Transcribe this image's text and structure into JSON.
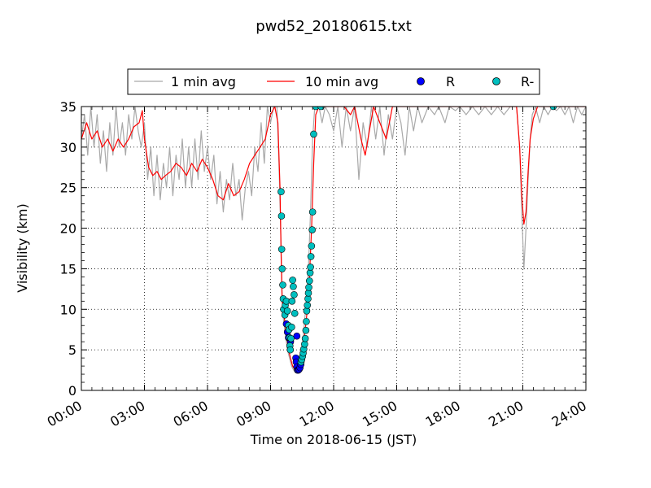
{
  "chart_data": {
    "type": "line",
    "title": "pwd52_20180615.txt",
    "xlabel": "Time on 2018-06-15 (JST)",
    "ylabel": "Visibility (km)",
    "x_unit": "hours",
    "xlim": [
      0,
      24
    ],
    "ylim": [
      0,
      35
    ],
    "x_ticks": [
      0,
      3,
      6,
      9,
      12,
      15,
      18,
      21,
      24
    ],
    "x_tick_labels": [
      "00:00",
      "03:00",
      "06:00",
      "09:00",
      "12:00",
      "15:00",
      "18:00",
      "21:00",
      "24:00"
    ],
    "y_ticks": [
      0,
      5,
      10,
      15,
      20,
      25,
      30,
      35
    ],
    "y_tick_labels": [
      "0",
      "5",
      "10",
      "15",
      "20",
      "25",
      "30",
      "35"
    ],
    "grid": true,
    "legend_position": "top-center",
    "colors": {
      "one_min": "#a9a9a9",
      "ten_min": "#ff0000",
      "R": "#0000ff",
      "R_minus": "#00bfbf"
    },
    "legend": [
      {
        "label": "1 min avg",
        "kind": "line",
        "color": "#a9a9a9"
      },
      {
        "label": "10 min avg",
        "kind": "line",
        "color": "#ff0000"
      },
      {
        "label": "R",
        "kind": "marker",
        "color": "#0000ff"
      },
      {
        "label": "R-",
        "kind": "marker",
        "color": "#00bfbf"
      }
    ],
    "series": [
      {
        "name": "1 min avg",
        "style": "line",
        "color": "#a9a9a9",
        "points": [
          [
            0,
            31
          ],
          [
            0.15,
            34
          ],
          [
            0.3,
            29
          ],
          [
            0.45,
            35
          ],
          [
            0.6,
            30
          ],
          [
            0.75,
            34
          ],
          [
            0.9,
            28
          ],
          [
            1.05,
            32
          ],
          [
            1.2,
            27
          ],
          [
            1.35,
            33
          ],
          [
            1.5,
            29
          ],
          [
            1.65,
            35
          ],
          [
            1.8,
            30
          ],
          [
            1.95,
            33
          ],
          [
            2.1,
            29
          ],
          [
            2.25,
            34
          ],
          [
            2.4,
            31
          ],
          [
            2.55,
            35
          ],
          [
            2.7,
            32
          ],
          [
            2.85,
            30
          ],
          [
            3,
            33
          ],
          [
            3.15,
            26
          ],
          [
            3.3,
            30
          ],
          [
            3.45,
            24
          ],
          [
            3.6,
            29
          ],
          [
            3.75,
            23.5
          ],
          [
            3.9,
            28
          ],
          [
            4.05,
            25
          ],
          [
            4.2,
            30
          ],
          [
            4.35,
            24
          ],
          [
            4.5,
            29
          ],
          [
            4.65,
            26
          ],
          [
            4.8,
            31
          ],
          [
            4.95,
            25
          ],
          [
            5.1,
            30
          ],
          [
            5.25,
            25
          ],
          [
            5.4,
            31
          ],
          [
            5.55,
            26
          ],
          [
            5.7,
            32
          ],
          [
            5.85,
            27
          ],
          [
            6,
            30
          ],
          [
            6.15,
            26
          ],
          [
            6.3,
            29
          ],
          [
            6.45,
            23
          ],
          [
            6.6,
            27
          ],
          [
            6.75,
            22
          ],
          [
            6.9,
            26
          ],
          [
            7.05,
            23.5
          ],
          [
            7.2,
            28
          ],
          [
            7.35,
            24
          ],
          [
            7.5,
            26
          ],
          [
            7.65,
            21
          ],
          [
            7.8,
            25
          ],
          [
            7.95,
            27
          ],
          [
            8.1,
            24
          ],
          [
            8.25,
            30
          ],
          [
            8.4,
            27
          ],
          [
            8.55,
            33
          ],
          [
            8.7,
            28
          ],
          [
            8.85,
            35
          ],
          [
            9,
            33
          ],
          [
            9.15,
            35
          ],
          [
            9.3,
            35
          ],
          [
            9.4,
            28
          ],
          [
            9.5,
            18
          ],
          [
            9.55,
            12
          ],
          [
            9.6,
            9
          ],
          [
            9.7,
            7
          ],
          [
            9.8,
            5
          ],
          [
            9.9,
            4
          ],
          [
            10,
            3
          ],
          [
            10.1,
            2.5
          ],
          [
            10.2,
            2.7
          ],
          [
            10.3,
            3
          ],
          [
            10.4,
            3.5
          ],
          [
            10.5,
            5
          ],
          [
            10.6,
            8
          ],
          [
            10.7,
            11
          ],
          [
            10.8,
            15
          ],
          [
            10.9,
            22
          ],
          [
            11,
            31
          ],
          [
            11.1,
            35
          ],
          [
            11.3,
            35
          ],
          [
            11.45,
            33
          ],
          [
            11.6,
            35
          ],
          [
            11.8,
            34
          ],
          [
            12,
            32
          ],
          [
            12.2,
            35
          ],
          [
            12.4,
            30
          ],
          [
            12.6,
            35
          ],
          [
            12.8,
            32
          ],
          [
            13,
            35
          ],
          [
            13.2,
            26
          ],
          [
            13.4,
            33
          ],
          [
            13.6,
            30
          ],
          [
            13.8,
            35
          ],
          [
            14,
            31
          ],
          [
            14.2,
            35
          ],
          [
            14.4,
            29
          ],
          [
            14.6,
            34
          ],
          [
            14.8,
            31
          ],
          [
            15,
            35
          ],
          [
            15.2,
            33
          ],
          [
            15.4,
            29
          ],
          [
            15.6,
            35
          ],
          [
            15.8,
            32
          ],
          [
            16,
            35
          ],
          [
            16.2,
            33
          ],
          [
            16.5,
            35
          ],
          [
            16.8,
            34
          ],
          [
            17,
            35
          ],
          [
            17.3,
            33
          ],
          [
            17.5,
            35
          ],
          [
            17.8,
            34.5
          ],
          [
            18,
            35
          ],
          [
            18.3,
            34
          ],
          [
            18.6,
            35
          ],
          [
            18.9,
            34
          ],
          [
            19.2,
            35
          ],
          [
            19.5,
            34
          ],
          [
            19.8,
            35
          ],
          [
            20.1,
            34
          ],
          [
            20.4,
            35
          ],
          [
            20.7,
            35
          ],
          [
            20.85,
            30
          ],
          [
            20.95,
            22
          ],
          [
            21.05,
            15
          ],
          [
            21.15,
            20
          ],
          [
            21.25,
            26
          ],
          [
            21.35,
            31
          ],
          [
            21.45,
            34
          ],
          [
            21.6,
            35
          ],
          [
            21.8,
            33
          ],
          [
            22,
            35
          ],
          [
            22.2,
            34
          ],
          [
            22.4,
            35
          ],
          [
            22.6,
            34.5
          ],
          [
            22.8,
            35
          ],
          [
            23,
            34
          ],
          [
            23.2,
            35
          ],
          [
            23.4,
            33
          ],
          [
            23.6,
            35
          ],
          [
            23.8,
            34
          ],
          [
            24,
            35
          ]
        ]
      },
      {
        "name": "10 min avg",
        "style": "line",
        "color": "#ff0000",
        "points": [
          [
            0,
            31
          ],
          [
            0.25,
            33
          ],
          [
            0.5,
            31
          ],
          [
            0.75,
            32
          ],
          [
            1,
            30
          ],
          [
            1.25,
            31
          ],
          [
            1.5,
            29.5
          ],
          [
            1.75,
            31
          ],
          [
            2,
            30
          ],
          [
            2.25,
            31
          ],
          [
            2.5,
            32.5
          ],
          [
            2.75,
            33
          ],
          [
            2.9,
            34.5
          ],
          [
            3,
            31
          ],
          [
            3.2,
            27.5
          ],
          [
            3.4,
            26.5
          ],
          [
            3.6,
            27
          ],
          [
            3.8,
            26
          ],
          [
            4,
            26.5
          ],
          [
            4.25,
            27
          ],
          [
            4.5,
            28
          ],
          [
            4.75,
            27.5
          ],
          [
            5,
            26.5
          ],
          [
            5.25,
            28
          ],
          [
            5.5,
            27
          ],
          [
            5.75,
            28.5
          ],
          [
            6,
            27.5
          ],
          [
            6.25,
            26
          ],
          [
            6.5,
            24
          ],
          [
            6.75,
            23.5
          ],
          [
            7,
            25.5
          ],
          [
            7.25,
            24
          ],
          [
            7.5,
            24.5
          ],
          [
            7.75,
            26
          ],
          [
            8,
            28
          ],
          [
            8.25,
            29
          ],
          [
            8.5,
            30
          ],
          [
            8.75,
            31
          ],
          [
            9,
            34
          ],
          [
            9.2,
            35
          ],
          [
            9.35,
            33
          ],
          [
            9.45,
            25
          ],
          [
            9.5,
            17
          ],
          [
            9.55,
            11
          ],
          [
            9.65,
            9
          ],
          [
            9.75,
            7
          ],
          [
            9.85,
            5
          ],
          [
            9.95,
            4
          ],
          [
            10.05,
            3
          ],
          [
            10.15,
            2.6
          ],
          [
            10.3,
            3
          ],
          [
            10.45,
            3.6
          ],
          [
            10.55,
            5
          ],
          [
            10.65,
            7.5
          ],
          [
            10.75,
            10
          ],
          [
            10.85,
            14
          ],
          [
            10.95,
            20
          ],
          [
            11.05,
            28
          ],
          [
            11.15,
            34
          ],
          [
            11.3,
            35
          ],
          [
            12,
            35
          ],
          [
            12.5,
            35
          ],
          [
            12.8,
            34
          ],
          [
            13,
            35
          ],
          [
            13.3,
            31
          ],
          [
            13.5,
            29
          ],
          [
            13.7,
            32
          ],
          [
            13.9,
            35
          ],
          [
            14.2,
            33
          ],
          [
            14.5,
            31
          ],
          [
            14.8,
            35
          ],
          [
            15.3,
            35
          ],
          [
            16,
            35
          ],
          [
            20.7,
            35
          ],
          [
            20.85,
            30
          ],
          [
            20.95,
            24
          ],
          [
            21.05,
            20.5
          ],
          [
            21.15,
            22
          ],
          [
            21.25,
            27
          ],
          [
            21.35,
            31
          ],
          [
            21.5,
            33.5
          ],
          [
            21.7,
            35
          ],
          [
            22,
            35
          ],
          [
            24,
            35
          ]
        ]
      },
      {
        "name": "R",
        "style": "marker",
        "color": "#0000ff",
        "points": [
          [
            9.75,
            8.2
          ],
          [
            9.8,
            7.2
          ],
          [
            9.85,
            6.5
          ],
          [
            9.95,
            6
          ],
          [
            10.25,
            6.7
          ],
          [
            10.2,
            4
          ],
          [
            10.22,
            3.5
          ],
          [
            10.25,
            2.9
          ],
          [
            10.28,
            2.5
          ],
          [
            10.32,
            2.5
          ],
          [
            10.36,
            2.6
          ],
          [
            10.4,
            2.8
          ],
          [
            10.44,
            3.2
          ]
        ]
      },
      {
        "name": "R-",
        "style": "marker",
        "color": "#00bfbf",
        "points": [
          [
            9.5,
            24.5
          ],
          [
            9.52,
            21.5
          ],
          [
            9.53,
            17.4
          ],
          [
            9.55,
            15
          ],
          [
            9.58,
            13
          ],
          [
            9.6,
            11.3
          ],
          [
            9.62,
            10
          ],
          [
            9.68,
            9.3
          ],
          [
            9.7,
            10.5
          ],
          [
            9.75,
            11
          ],
          [
            9.8,
            9.8
          ],
          [
            9.85,
            8
          ],
          [
            9.88,
            7.5
          ],
          [
            9.9,
            6.5
          ],
          [
            9.92,
            5.5
          ],
          [
            9.94,
            5
          ],
          [
            9.97,
            6.4
          ],
          [
            10,
            7.8
          ],
          [
            10.02,
            11
          ],
          [
            10.05,
            13.6
          ],
          [
            10.08,
            12.8
          ],
          [
            10.12,
            11.8
          ],
          [
            10.15,
            9.5
          ],
          [
            10.45,
            3.5
          ],
          [
            10.48,
            3.8
          ],
          [
            10.52,
            4.2
          ],
          [
            10.55,
            4.6
          ],
          [
            10.58,
            5.1
          ],
          [
            10.62,
            5.7
          ],
          [
            10.65,
            6.4
          ],
          [
            10.68,
            7.4
          ],
          [
            10.7,
            8.5
          ],
          [
            10.72,
            9.8
          ],
          [
            10.75,
            10.5
          ],
          [
            10.78,
            11.3
          ],
          [
            10.8,
            12
          ],
          [
            10.82,
            12.7
          ],
          [
            10.85,
            13.5
          ],
          [
            10.88,
            14.5
          ],
          [
            10.9,
            15.2
          ],
          [
            10.92,
            16.5
          ],
          [
            10.95,
            17.8
          ],
          [
            10.98,
            19.8
          ],
          [
            11,
            22
          ],
          [
            11.05,
            31.6
          ],
          [
            11.15,
            35
          ],
          [
            11.4,
            35
          ],
          [
            22.45,
            35
          ]
        ]
      }
    ]
  }
}
